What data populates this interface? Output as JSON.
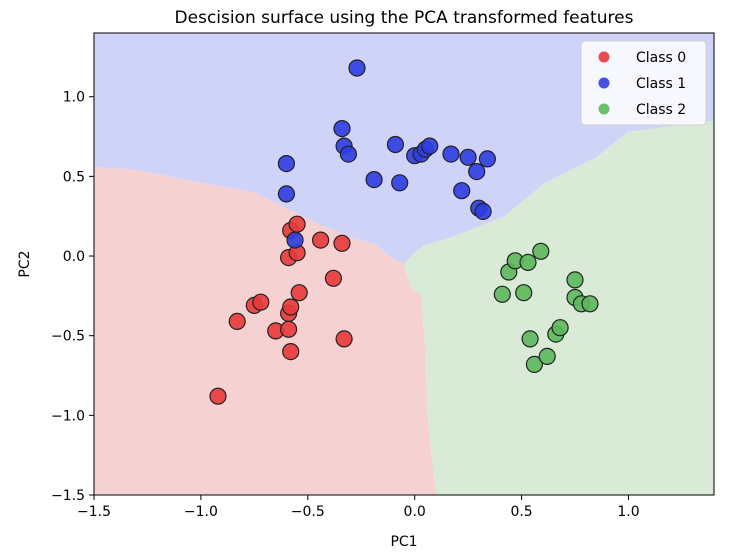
{
  "chart_data": {
    "type": "scatter",
    "title": "Descision surface using the PCA transformed features",
    "xlabel": "PC1",
    "ylabel": "PC2",
    "xlim": [
      -1.5,
      1.4
    ],
    "ylim": [
      -1.5,
      1.4
    ],
    "x_ticks": [
      {
        "value": -1.5,
        "label": "−1.5"
      },
      {
        "value": -1.0,
        "label": "−1.0"
      },
      {
        "value": -0.5,
        "label": "−0.5"
      },
      {
        "value": 0.0,
        "label": "0.0"
      },
      {
        "value": 0.5,
        "label": "0.5"
      },
      {
        "value": 1.0,
        "label": "1.0"
      }
    ],
    "y_ticks": [
      {
        "value": -1.5,
        "label": "−1.5"
      },
      {
        "value": -1.0,
        "label": "−1.0"
      },
      {
        "value": -0.5,
        "label": "−0.5"
      },
      {
        "value": 0.0,
        "label": "0.0"
      },
      {
        "value": 0.5,
        "label": "0.5"
      },
      {
        "value": 1.0,
        "label": "1.0"
      }
    ],
    "grid": false,
    "legend_position": "top-right",
    "regions": [
      {
        "class": "Class 1",
        "color": "#cfd3f7",
        "polygon": [
          [
            -1.5,
            1.4
          ],
          [
            1.4,
            1.4
          ],
          [
            1.4,
            0.85
          ],
          [
            1.0,
            0.78
          ],
          [
            0.85,
            0.62
          ],
          [
            0.6,
            0.45
          ],
          [
            0.42,
            0.25
          ],
          [
            0.18,
            0.12
          ],
          [
            0.05,
            0.07
          ],
          [
            0.0,
            0.02
          ],
          [
            -0.05,
            -0.05
          ],
          [
            -0.12,
            0.0
          ],
          [
            -0.18,
            0.07
          ],
          [
            -0.3,
            0.12
          ],
          [
            -0.45,
            0.2
          ],
          [
            -0.6,
            0.3
          ],
          [
            -0.75,
            0.4
          ],
          [
            -1.0,
            0.46
          ],
          [
            -1.3,
            0.54
          ],
          [
            -1.5,
            0.56
          ]
        ]
      },
      {
        "class": "Class 0",
        "color": "#f5d2d1",
        "polygon": [
          [
            -1.5,
            0.56
          ],
          [
            -1.3,
            0.54
          ],
          [
            -1.0,
            0.46
          ],
          [
            -0.75,
            0.4
          ],
          [
            -0.6,
            0.3
          ],
          [
            -0.45,
            0.2
          ],
          [
            -0.3,
            0.12
          ],
          [
            -0.18,
            0.07
          ],
          [
            -0.12,
            0.0
          ],
          [
            -0.05,
            -0.05
          ],
          [
            -0.02,
            -0.2
          ],
          [
            0.03,
            -0.25
          ],
          [
            0.05,
            -0.6
          ],
          [
            0.06,
            -1.0
          ],
          [
            0.1,
            -1.5
          ],
          [
            -1.5,
            -1.5
          ]
        ]
      },
      {
        "class": "Class 2",
        "color": "#d9ebd6",
        "polygon": [
          [
            1.4,
            0.85
          ],
          [
            1.0,
            0.78
          ],
          [
            0.85,
            0.62
          ],
          [
            0.6,
            0.45
          ],
          [
            0.42,
            0.25
          ],
          [
            0.18,
            0.12
          ],
          [
            0.05,
            0.07
          ],
          [
            0.0,
            0.02
          ],
          [
            -0.05,
            -0.05
          ],
          [
            -0.02,
            -0.2
          ],
          [
            0.03,
            -0.25
          ],
          [
            0.05,
            -0.6
          ],
          [
            0.06,
            -1.0
          ],
          [
            0.1,
            -1.5
          ],
          [
            1.4,
            -1.5
          ]
        ]
      }
    ],
    "series": [
      {
        "name": "Class 0",
        "color": "#e8393a",
        "points": [
          [
            -0.92,
            -0.88
          ],
          [
            -0.83,
            -0.41
          ],
          [
            -0.75,
            -0.31
          ],
          [
            -0.72,
            -0.29
          ],
          [
            -0.65,
            -0.47
          ],
          [
            -0.59,
            -0.46
          ],
          [
            -0.59,
            -0.36
          ],
          [
            -0.58,
            -0.32
          ],
          [
            -0.58,
            -0.6
          ],
          [
            -0.58,
            0.16
          ],
          [
            -0.59,
            -0.01
          ],
          [
            -0.55,
            0.02
          ],
          [
            -0.55,
            0.2
          ],
          [
            -0.54,
            -0.23
          ],
          [
            -0.44,
            0.1
          ],
          [
            -0.38,
            -0.14
          ],
          [
            -0.34,
            0.08
          ],
          [
            -0.33,
            -0.52
          ]
        ]
      },
      {
        "name": "Class 1",
        "color": "#2e3de0",
        "points": [
          [
            -0.6,
            0.58
          ],
          [
            -0.6,
            0.39
          ],
          [
            -0.56,
            0.1
          ],
          [
            -0.34,
            0.8
          ],
          [
            -0.33,
            0.69
          ],
          [
            -0.31,
            0.64
          ],
          [
            -0.27,
            1.18
          ],
          [
            -0.19,
            0.48
          ],
          [
            -0.09,
            0.7
          ],
          [
            -0.07,
            0.46
          ],
          [
            0.0,
            0.63
          ],
          [
            0.03,
            0.64
          ],
          [
            0.05,
            0.67
          ],
          [
            0.07,
            0.69
          ],
          [
            0.17,
            0.64
          ],
          [
            0.22,
            0.41
          ],
          [
            0.25,
            0.62
          ],
          [
            0.29,
            0.53
          ],
          [
            0.3,
            0.3
          ],
          [
            0.32,
            0.28
          ],
          [
            0.34,
            0.61
          ]
        ]
      },
      {
        "name": "Class 2",
        "color": "#5cb85c",
        "points": [
          [
            0.41,
            -0.24
          ],
          [
            0.44,
            -0.1
          ],
          [
            0.47,
            -0.03
          ],
          [
            0.51,
            -0.23
          ],
          [
            0.53,
            -0.04
          ],
          [
            0.54,
            -0.52
          ],
          [
            0.56,
            -0.68
          ],
          [
            0.59,
            0.03
          ],
          [
            0.62,
            -0.63
          ],
          [
            0.66,
            -0.49
          ],
          [
            0.68,
            -0.45
          ],
          [
            0.75,
            -0.15
          ],
          [
            0.75,
            -0.26
          ],
          [
            0.78,
            -0.3
          ],
          [
            0.82,
            -0.3
          ]
        ]
      }
    ]
  }
}
